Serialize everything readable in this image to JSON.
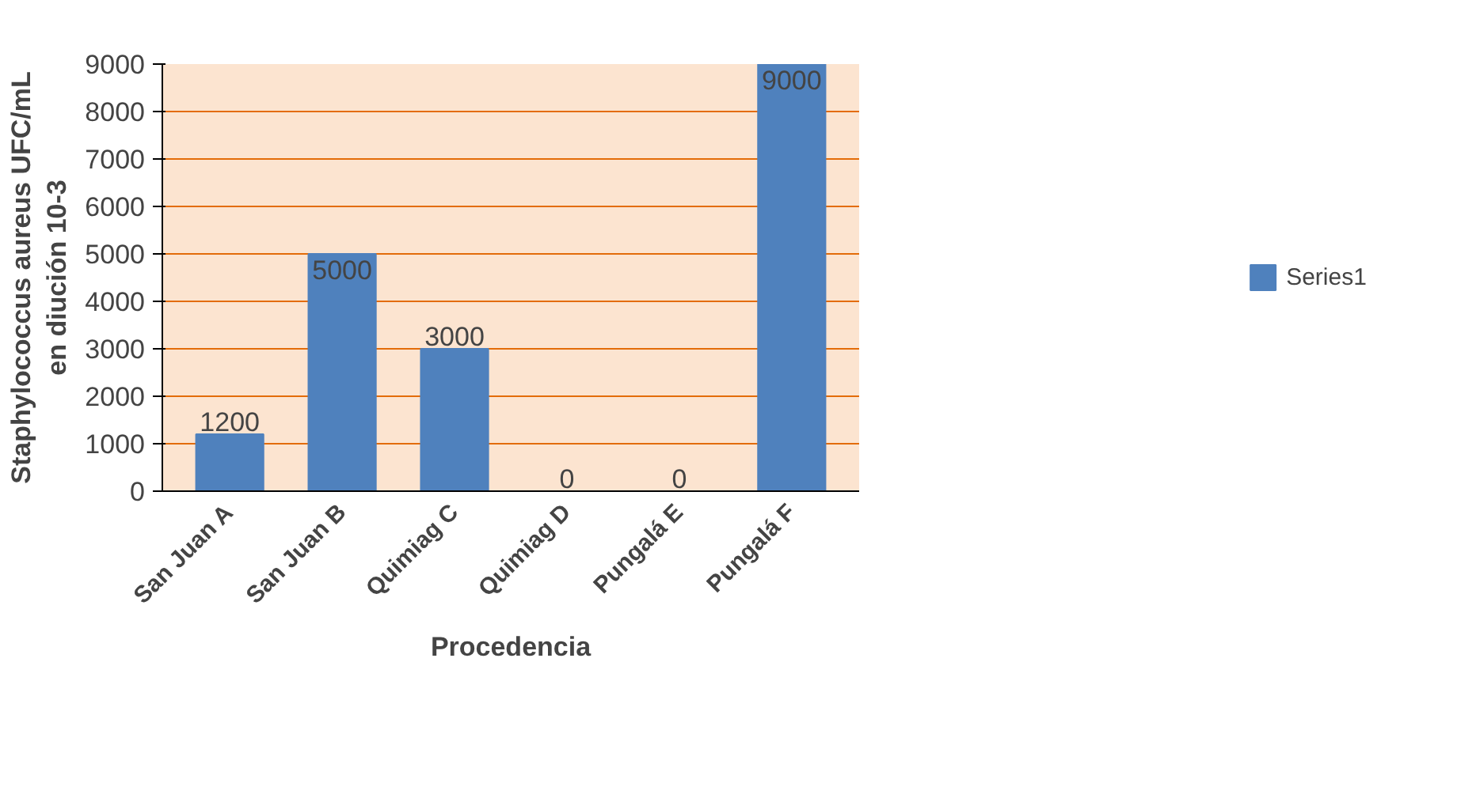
{
  "chart_data": {
    "type": "bar",
    "categories": [
      "San Juan A",
      "San Juan B",
      "Quimiag C",
      "Quimiag D",
      "Pungalá E",
      "Pungalá F"
    ],
    "series": [
      {
        "name": "Series1",
        "color": "#4f81bd",
        "values": [
          1200,
          5000,
          3000,
          0,
          0,
          9000
        ]
      }
    ],
    "xlabel": "Procedencia",
    "ylabel": "Staphylococcus aureus UFC/mL\nen diución 10-3",
    "ylim": [
      0,
      9000
    ],
    "yticks": [
      0,
      1000,
      2000,
      3000,
      4000,
      5000,
      6000,
      7000,
      8000,
      9000
    ],
    "grid": "y",
    "legend": "right",
    "data_labels": true
  }
}
